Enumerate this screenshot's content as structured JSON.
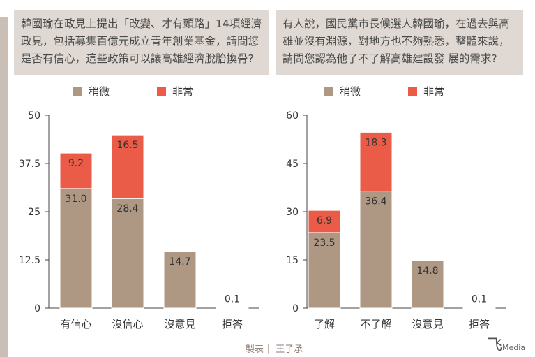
{
  "questions": [
    "韓國瑜在政見上提出「改變、才有頭路」14項經濟政見，包括募集百億元成立青年創業基金，請問您是否有信心，這些政策可以讓高雄經濟脫胎換骨?",
    "有人說，國民黨市長候選人韓國瑜，在過去與高雄並沒有淵源，對地方也不夠熟悉，整體來說，請問您認為他了不了解高雄建設發 展的需求?"
  ],
  "credit": "製表｜ 王子承",
  "logo": "Media",
  "colors": {
    "slight": "#ae9883",
    "very": "#ea5b48"
  },
  "chart_data": [
    {
      "type": "bar",
      "stacked": true,
      "legend": [
        "稍微",
        "非常"
      ],
      "legend_position": "top",
      "categories": [
        "有信心",
        "沒信心",
        "沒意見",
        "拒答"
      ],
      "series": [
        {
          "name": "稍微",
          "values": [
            31.0,
            28.4,
            14.7,
            0.1
          ]
        },
        {
          "name": "非常",
          "values": [
            9.2,
            16.5,
            null,
            null
          ]
        }
      ],
      "yticks": [
        "0",
        "12.5",
        "25",
        "37.5",
        "50"
      ],
      "ylim": [
        0,
        50
      ]
    },
    {
      "type": "bar",
      "stacked": true,
      "legend": [
        "稍微",
        "非常"
      ],
      "legend_position": "top",
      "categories": [
        "了解",
        "不了解",
        "沒意見",
        "拒答"
      ],
      "series": [
        {
          "name": "稍微",
          "values": [
            23.5,
            36.4,
            14.8,
            0.1
          ]
        },
        {
          "name": "非常",
          "values": [
            6.9,
            18.3,
            null,
            null
          ]
        }
      ],
      "yticks": [
        "0",
        "15",
        "30",
        "45",
        "60"
      ],
      "ylim": [
        0,
        60
      ]
    }
  ]
}
